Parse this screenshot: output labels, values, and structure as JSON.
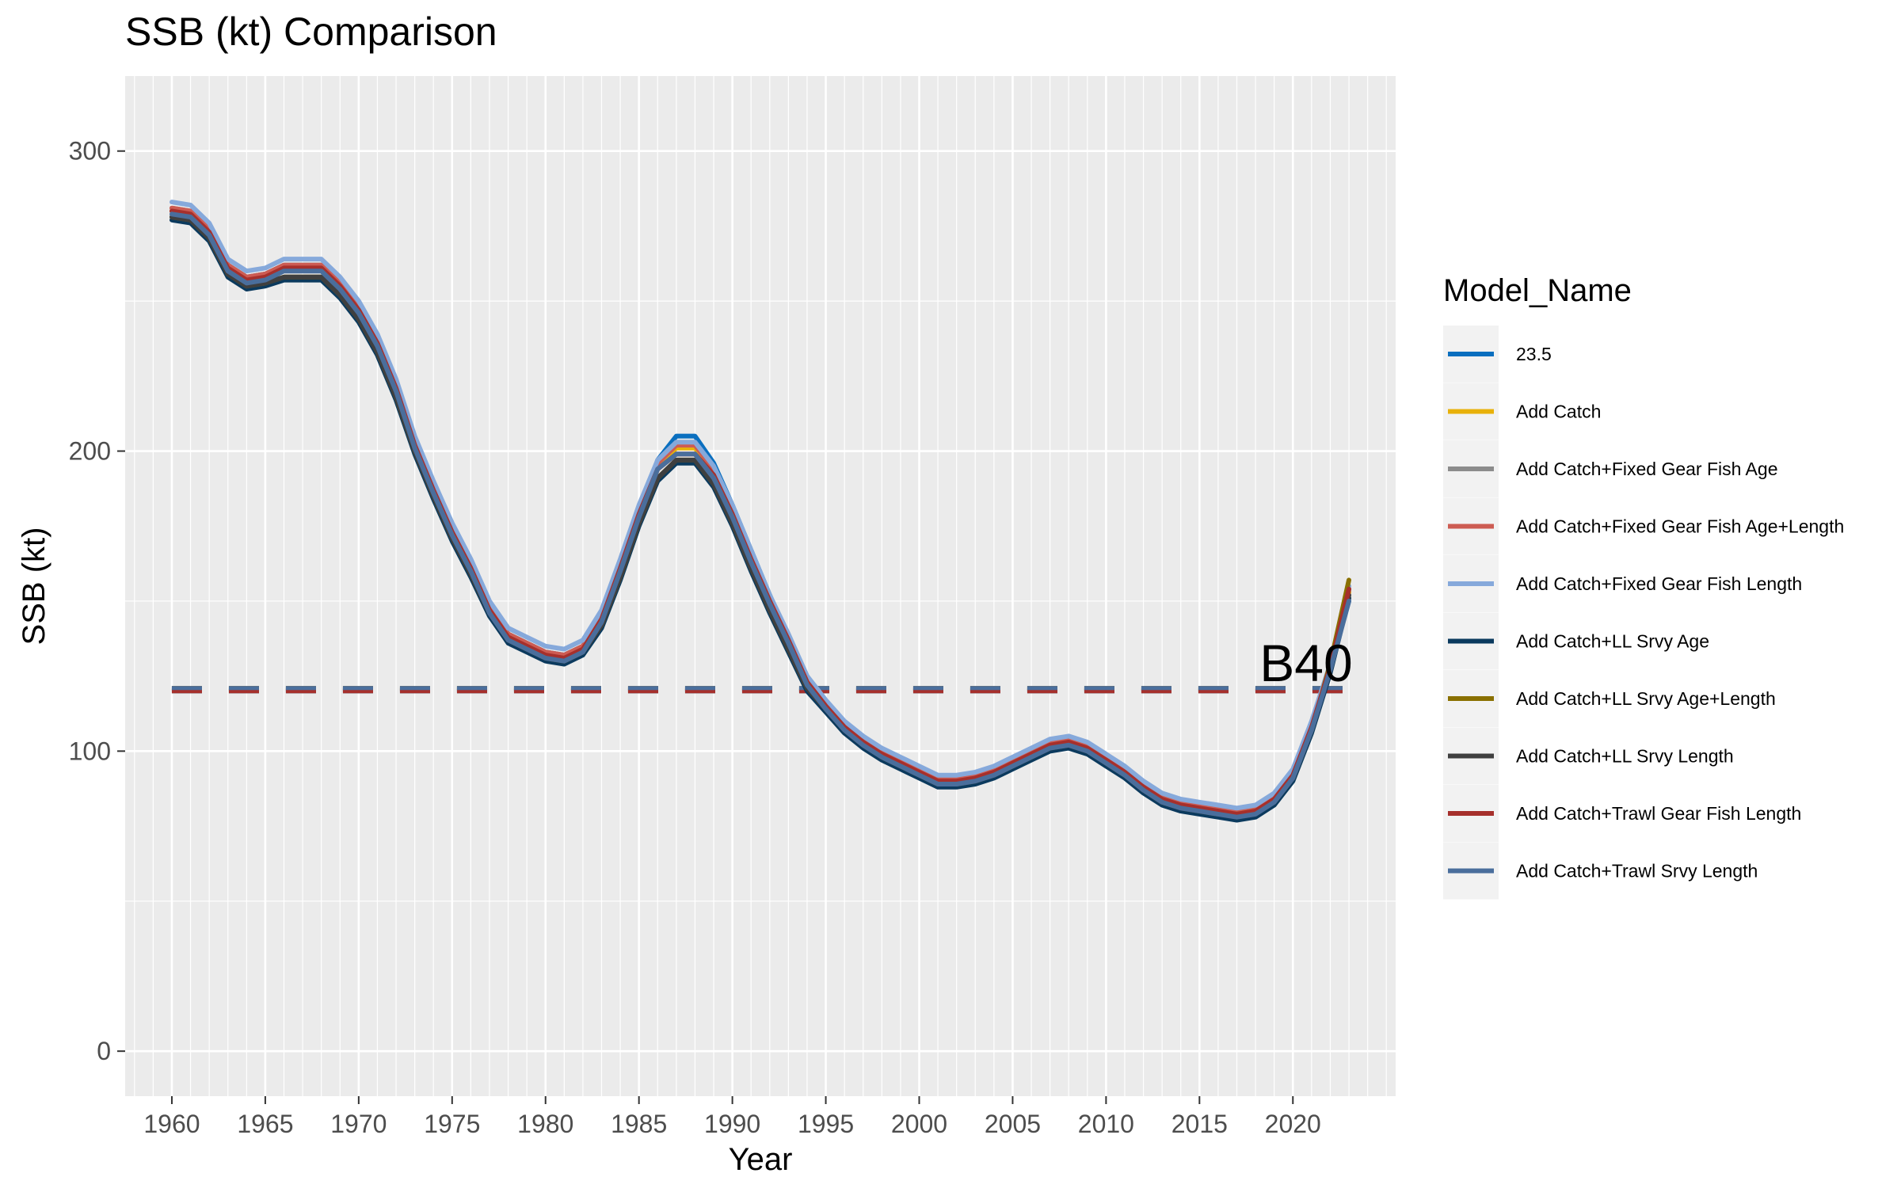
{
  "chart_data": {
    "type": "line",
    "title": "SSB (kt) Comparison",
    "xlabel": "Year",
    "ylabel": "SSB (kt)",
    "xlim": [
      1957.5,
      2025.5
    ],
    "ylim": [
      -15,
      325
    ],
    "x_ticks": [
      1960,
      1965,
      1970,
      1975,
      1980,
      1985,
      1990,
      1995,
      2000,
      2005,
      2010,
      2015,
      2020
    ],
    "y_ticks": [
      0,
      100,
      200,
      300
    ],
    "grid": true,
    "legend": {
      "title": "Model_Name",
      "placement": "right"
    },
    "annotation": {
      "text": "B40",
      "x": 2022,
      "y": 128
    },
    "reference_line": {
      "label": "B40",
      "value": 120.5,
      "x_range": [
        1960,
        2023
      ],
      "style": "dashed"
    },
    "x": [
      1960,
      1961,
      1962,
      1963,
      1964,
      1965,
      1966,
      1967,
      1968,
      1969,
      1970,
      1971,
      1972,
      1973,
      1974,
      1975,
      1976,
      1977,
      1978,
      1979,
      1980,
      1981,
      1982,
      1983,
      1984,
      1985,
      1986,
      1987,
      1988,
      1989,
      1990,
      1991,
      1992,
      1993,
      1994,
      1995,
      1996,
      1997,
      1998,
      1999,
      2000,
      2001,
      2002,
      2003,
      2004,
      2005,
      2006,
      2007,
      2008,
      2009,
      2010,
      2011,
      2012,
      2013,
      2014,
      2015,
      2016,
      2017,
      2018,
      2019,
      2020,
      2021,
      2022,
      2023
    ],
    "series": [
      {
        "name": "23.5",
        "color": "#0A6FBF",
        "values": [
          280,
          280,
          274,
          262,
          258,
          259,
          262,
          262,
          262,
          256,
          248,
          237,
          222,
          203,
          188,
          174,
          162,
          148,
          139,
          136,
          133,
          132,
          135,
          145,
          162,
          180,
          197,
          205,
          205,
          196,
          182,
          167,
          152,
          138,
          124,
          116,
          109,
          104,
          100,
          97,
          94,
          91,
          91,
          92,
          94,
          97,
          100,
          103,
          104,
          102,
          98,
          94,
          89,
          85,
          83,
          82,
          81,
          80,
          81,
          85,
          93,
          109,
          128,
          150
        ]
      },
      {
        "name": "Add Catch",
        "color": "#E8B10A",
        "values": [
          280,
          279,
          273,
          261,
          257,
          258,
          261,
          261,
          261,
          255,
          247,
          236,
          221,
          202,
          187,
          173,
          161,
          147,
          138,
          135,
          132,
          131,
          134,
          144,
          161,
          179,
          195,
          201,
          201,
          193,
          180,
          165,
          150,
          137,
          123,
          115,
          108,
          103,
          99,
          96,
          93,
          90,
          90,
          91,
          93,
          96,
          99,
          102,
          103,
          101,
          97,
          93,
          88,
          84,
          82,
          81,
          80,
          79,
          80,
          84,
          92,
          108,
          128,
          153
        ]
      },
      {
        "name": "Add Catch+Fixed Gear Fish Age",
        "color": "#8C8C8C",
        "values": [
          281,
          280,
          274,
          262,
          258,
          259,
          262,
          262,
          262,
          256,
          248,
          237,
          222,
          203,
          188,
          174,
          162,
          148,
          139,
          136,
          133,
          132,
          135,
          145,
          162,
          180,
          196,
          202,
          202,
          194,
          181,
          166,
          151,
          138,
          124,
          116,
          109,
          104,
          100,
          97,
          94,
          91,
          91,
          92,
          94,
          97,
          100,
          103,
          104,
          102,
          98,
          94,
          89,
          85,
          83,
          82,
          81,
          80,
          81,
          85,
          93,
          109,
          128,
          154
        ]
      },
      {
        "name": "Add Catch+Fixed Gear Fish Age+Length",
        "color": "#CD5C53",
        "values": [
          281,
          280,
          274,
          262,
          258,
          259,
          262,
          262,
          262,
          256,
          248,
          237,
          222,
          203,
          188,
          174,
          162,
          148,
          139,
          136,
          133,
          132,
          135,
          145,
          162,
          180,
          196,
          202,
          202,
          194,
          181,
          166,
          151,
          138,
          124,
          116,
          109,
          104,
          100,
          97,
          94,
          91,
          91,
          92,
          94,
          97,
          100,
          103,
          104,
          102,
          98,
          94,
          89,
          85,
          83,
          82,
          81,
          80,
          81,
          85,
          93,
          109,
          128,
          154
        ]
      },
      {
        "name": "Add Catch+Fixed Gear Fish Length",
        "color": "#86A9DB",
        "values": [
          283,
          282,
          276,
          264,
          260,
          261,
          264,
          264,
          264,
          258,
          250,
          239,
          224,
          205,
          190,
          176,
          164,
          150,
          141,
          138,
          135,
          134,
          137,
          147,
          164,
          182,
          197,
          203,
          203,
          195,
          182,
          167,
          152,
          139,
          125,
          117,
          110,
          105,
          101,
          98,
          95,
          92,
          92,
          93,
          95,
          98,
          101,
          104,
          105,
          103,
          99,
          95,
          90,
          86,
          84,
          83,
          82,
          81,
          82,
          86,
          94,
          110,
          129,
          155
        ]
      },
      {
        "name": "Add Catch+LL Srvy Age",
        "color": "#0B3A5E",
        "values": [
          277,
          276,
          270,
          258,
          254,
          255,
          257,
          257,
          257,
          251,
          243,
          232,
          217,
          199,
          184,
          170,
          158,
          145,
          136,
          133,
          130,
          129,
          132,
          141,
          157,
          175,
          190,
          196,
          196,
          188,
          175,
          160,
          146,
          133,
          120,
          113,
          106,
          101,
          97,
          94,
          91,
          88,
          88,
          89,
          91,
          94,
          97,
          100,
          101,
          99,
          95,
          91,
          86,
          82,
          80,
          79,
          78,
          77,
          78,
          82,
          90,
          106,
          126,
          151
        ]
      },
      {
        "name": "Add Catch+LL Srvy Age+Length",
        "color": "#8A7000",
        "values": [
          278,
          277,
          271,
          259,
          255,
          256,
          258,
          258,
          258,
          252,
          244,
          233,
          218,
          200,
          185,
          171,
          159,
          146,
          137,
          134,
          131,
          130,
          133,
          142,
          158,
          176,
          191,
          197,
          197,
          189,
          176,
          161,
          147,
          134,
          121,
          114,
          107,
          102,
          98,
          95,
          92,
          89,
          89,
          90,
          92,
          95,
          98,
          101,
          102,
          100,
          96,
          92,
          87,
          83,
          81,
          80,
          79,
          79,
          80,
          83,
          91,
          107,
          129,
          157
        ]
      },
      {
        "name": "Add Catch+LL Srvy Length",
        "color": "#3F3F3F",
        "values": [
          278,
          277,
          271,
          259,
          255,
          256,
          258,
          258,
          258,
          252,
          244,
          233,
          218,
          200,
          185,
          171,
          159,
          146,
          137,
          134,
          131,
          130,
          133,
          142,
          158,
          176,
          191,
          197,
          197,
          189,
          176,
          161,
          147,
          134,
          121,
          114,
          107,
          102,
          98,
          95,
          92,
          89,
          89,
          90,
          92,
          95,
          98,
          101,
          102,
          100,
          96,
          92,
          87,
          83,
          81,
          80,
          79,
          78,
          79,
          83,
          91,
          107,
          127,
          152
        ]
      },
      {
        "name": "Add Catch+Trawl Gear Fish Length",
        "color": "#A6302C",
        "values": [
          280,
          279,
          273,
          261,
          257,
          258,
          261,
          261,
          261,
          255,
          247,
          236,
          221,
          202,
          187,
          173,
          161,
          147,
          138,
          135,
          132,
          131,
          134,
          144,
          161,
          179,
          194,
          199,
          199,
          192,
          179,
          164,
          150,
          137,
          123,
          115,
          108,
          103,
          99,
          96,
          93,
          90,
          90,
          91,
          93,
          96,
          99,
          102,
          103,
          101,
          97,
          93,
          88,
          84,
          82,
          81,
          80,
          79,
          80,
          84,
          92,
          108,
          128,
          154
        ]
      },
      {
        "name": "Add Catch+Trawl Srvy Length",
        "color": "#4A6E9C",
        "values": [
          279,
          278,
          272,
          260,
          256,
          257,
          260,
          260,
          260,
          254,
          246,
          235,
          220,
          201,
          186,
          172,
          160,
          146,
          137,
          134,
          131,
          130,
          133,
          143,
          160,
          178,
          194,
          199,
          199,
          191,
          178,
          163,
          149,
          136,
          122,
          114,
          107,
          102,
          98,
          95,
          92,
          89,
          89,
          90,
          92,
          95,
          98,
          101,
          102,
          100,
          96,
          92,
          87,
          83,
          81,
          80,
          79,
          78,
          79,
          83,
          91,
          107,
          127,
          150
        ]
      }
    ]
  }
}
